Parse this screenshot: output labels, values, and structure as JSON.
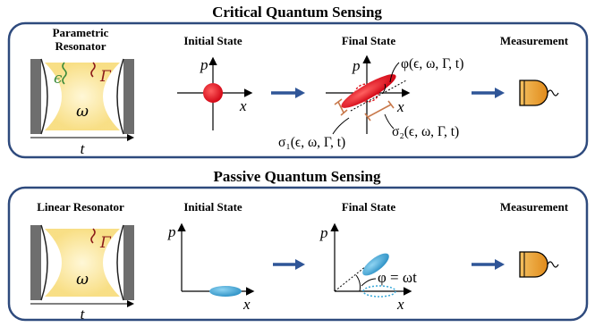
{
  "top_panel": {
    "title": "Critical Quantum Sensing",
    "resonator_label_line1": "Parametric",
    "resonator_label_line2": "Resonator",
    "initial_state_label": "Initial State",
    "final_state_label": "Final State",
    "measurement_label": "Measurement",
    "resonator_symbols": {
      "epsilon": "ϵ",
      "gamma": "Γ",
      "omega": "ω",
      "time": "t"
    },
    "axis_labels": {
      "p": "p",
      "x": "x"
    },
    "phase_expr": "φ(ϵ, ω, Γ, t)",
    "sigma1_expr": "σ₁(ϵ, ω, Γ, t)",
    "sigma2_expr": "σ₂(ϵ, ω, Γ, t)"
  },
  "bottom_panel": {
    "title": "Passive Quantum Sensing",
    "resonator_label": "Linear Resonator",
    "initial_state_label": "Initial State",
    "final_state_label": "Final State",
    "measurement_label": "Measurement",
    "resonator_symbols": {
      "gamma": "Γ",
      "omega": "ω",
      "time": "t"
    },
    "axis_labels": {
      "p": "p",
      "x": "x"
    },
    "phase_expr": "φ = ωt"
  },
  "colors": {
    "panel_border": "#2e4a7d",
    "arrow": "#2f5597",
    "red_state": "#e0141b",
    "blue_state": "#3aa8d8",
    "detector": "#f0a030",
    "cavity_glow": "#fbe8a8",
    "mirror": "#6e6e6e",
    "drive_green": "#3a8a3a",
    "loss_red": "#8b1a1a",
    "sigma_brace": "#c8784a"
  }
}
